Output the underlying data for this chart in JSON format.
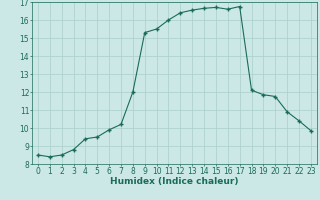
{
  "x": [
    0,
    1,
    2,
    3,
    4,
    5,
    6,
    7,
    8,
    9,
    10,
    11,
    12,
    13,
    14,
    15,
    16,
    17,
    18,
    19,
    20,
    21,
    22,
    23
  ],
  "y": [
    8.5,
    8.4,
    8.5,
    8.8,
    9.4,
    9.5,
    9.9,
    10.2,
    12.0,
    15.3,
    15.5,
    16.0,
    16.4,
    16.55,
    16.65,
    16.7,
    16.6,
    16.75,
    12.1,
    11.85,
    11.75,
    10.9,
    10.4,
    9.85
  ],
  "xlim": [
    -0.5,
    23.5
  ],
  "ylim": [
    8,
    17
  ],
  "yticks": [
    8,
    9,
    10,
    11,
    12,
    13,
    14,
    15,
    16,
    17
  ],
  "xticks": [
    0,
    1,
    2,
    3,
    4,
    5,
    6,
    7,
    8,
    9,
    10,
    11,
    12,
    13,
    14,
    15,
    16,
    17,
    18,
    19,
    20,
    21,
    22,
    23
  ],
  "xlabel": "Humidex (Indice chaleur)",
  "line_color": "#1a6b5a",
  "marker_color": "#1a6b5a",
  "bg_color": "#cce8e6",
  "grid_color": "#aacfcc",
  "xlabel_fontsize": 6.5,
  "tick_fontsize": 5.5
}
